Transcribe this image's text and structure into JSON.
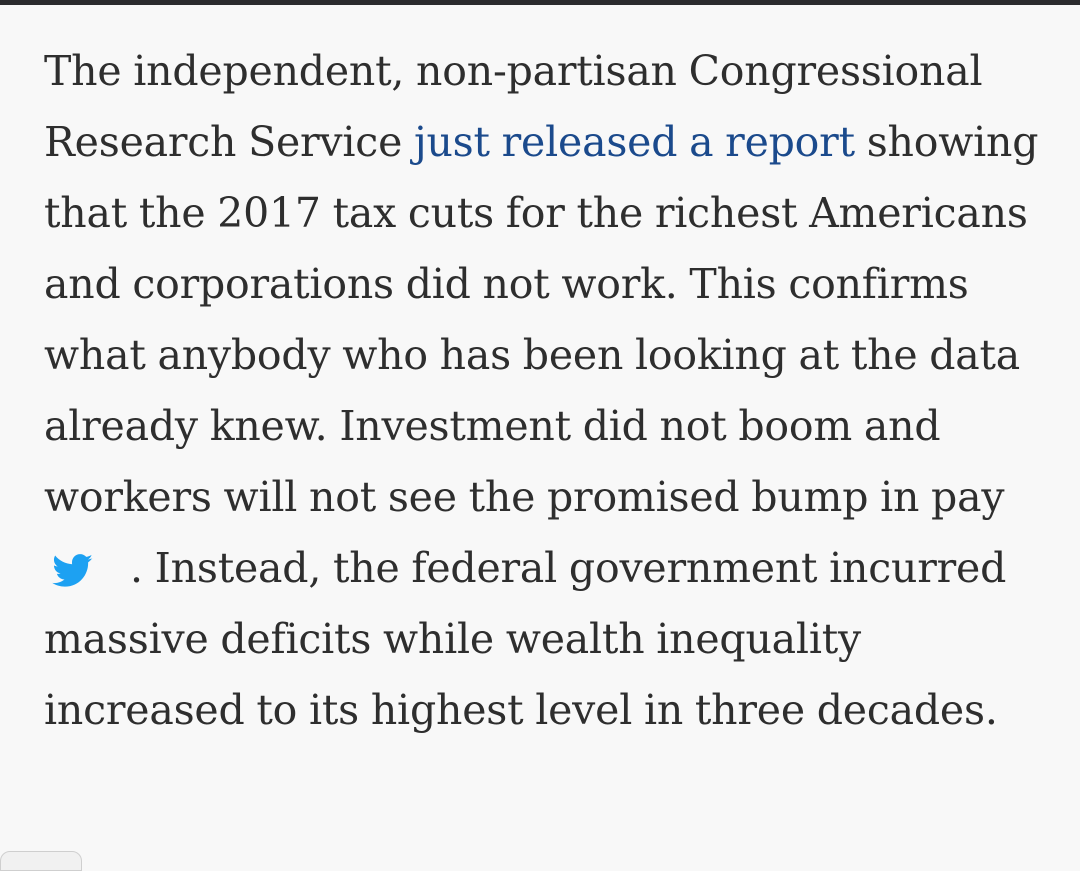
{
  "paragraph": {
    "text_before_link": "The independent, non-partisan Congressional Research Service ",
    "link_text": "just released a report",
    "text_after_link": " showing that the 2017 tax cuts for the richest Americans and corporations did not work. This confirms what anybody who has been looking at the data already knew. Investment did not boom and workers will not see the promised bump in pay",
    "text_after_icon": ". Instead, the federal government incurred massive deficits while wealth inequality increased to its highest level in three decades."
  },
  "icons": {
    "tweet": "twitter-bird-icon"
  },
  "colors": {
    "text": "#2e2e2e",
    "link": "#1b4a8c",
    "twitter": "#1da1f2",
    "background": "#f8f8f8"
  }
}
